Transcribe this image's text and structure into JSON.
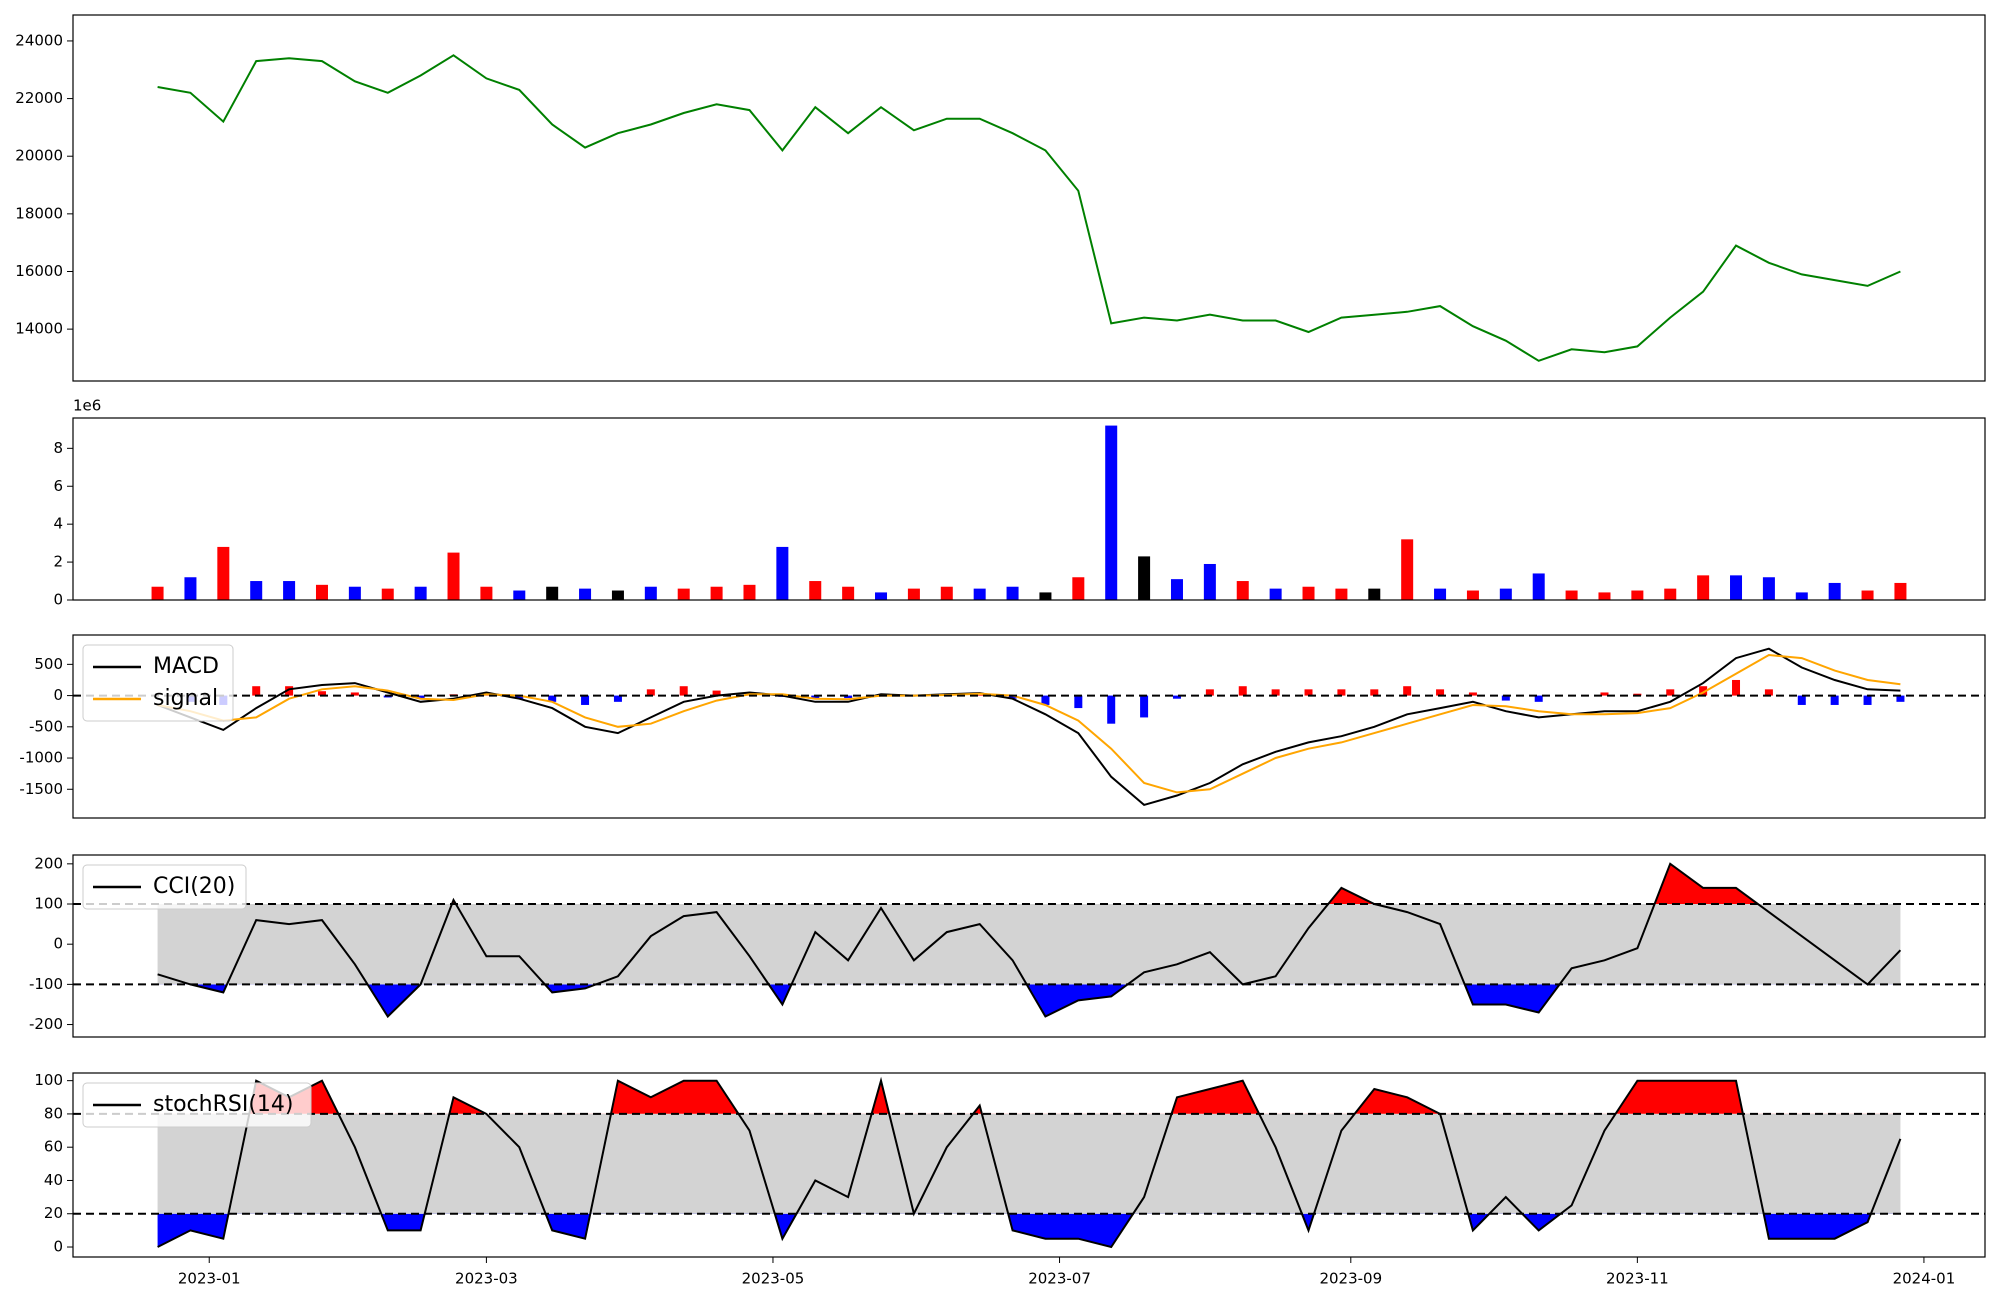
{
  "chart_data": {
    "type": "financial",
    "x": [
      19347,
      19354,
      19361,
      19368,
      19375,
      19382,
      19389,
      19396,
      19403,
      19410,
      19417,
      19424,
      19431,
      19438,
      19445,
      19452,
      19459,
      19466,
      19473,
      19480,
      19487,
      19494,
      19501,
      19508,
      19515,
      19522,
      19529,
      19536,
      19543,
      19550,
      19557,
      19564,
      19571,
      19578,
      19585,
      19592,
      19599,
      19606,
      19613,
      19620,
      19627,
      19634,
      19641,
      19648,
      19655,
      19662,
      19669,
      19676,
      19683,
      19690,
      19697,
      19704,
      19711,
      19718
    ],
    "xlim": [
      19329,
      19736
    ],
    "xticks": [
      {
        "value": 19358,
        "label": "2023-01"
      },
      {
        "value": 19417,
        "label": "2023-03"
      },
      {
        "value": 19478,
        "label": "2023-05"
      },
      {
        "value": 19539,
        "label": "2023-07"
      },
      {
        "value": 19601,
        "label": "2023-09"
      },
      {
        "value": 19662,
        "label": "2023-11"
      },
      {
        "value": 19723,
        "label": "2024-01"
      }
    ],
    "panels": [
      {
        "type": "line",
        "ylim": [
          12200,
          24900
        ],
        "yticks": [
          14000,
          16000,
          18000,
          20000,
          22000,
          24000
        ],
        "series": [
          {
            "color": "green",
            "values": [
              22400,
              22200,
              21200,
              23300,
              23400,
              23300,
              22600,
              22200,
              22800,
              23500,
              22700,
              22300,
              21100,
              20300,
              20800,
              21100,
              21500,
              21800,
              21600,
              20200,
              21700,
              20800,
              21700,
              20900,
              21300,
              21300,
              20800,
              20200,
              18800,
              14200,
              14400,
              14300,
              14500,
              14300,
              14300,
              13900,
              14400,
              14500,
              14600,
              14800,
              14100,
              13600,
              12900,
              13300,
              13200,
              13400,
              14400,
              15300,
              16900,
              16300,
              15900,
              15700,
              15500,
              16000
            ]
          }
        ]
      },
      {
        "type": "bar",
        "offset_label": "1e6",
        "ylim": [
          0,
          9.6
        ],
        "yticks": [
          0,
          2,
          4,
          6,
          8
        ],
        "values": [
          0.7,
          1.2,
          2.8,
          1.0,
          1.0,
          0.8,
          0.7,
          0.6,
          0.7,
          2.5,
          0.7,
          0.5,
          0.7,
          0.6,
          0.5,
          0.7,
          0.6,
          0.7,
          0.8,
          2.8,
          1.0,
          0.7,
          0.4,
          0.6,
          0.7,
          0.6,
          0.7,
          0.4,
          1.2,
          9.2,
          2.3,
          1.1,
          1.9,
          1.0,
          0.6,
          0.7,
          0.6,
          0.6,
          3.2,
          0.6,
          0.5,
          0.6,
          1.4,
          0.5,
          0.4,
          0.5,
          0.6,
          1.3,
          1.3,
          1.2,
          0.4,
          0.9,
          0.5,
          0.9
        ],
        "colors": [
          "red",
          "blue",
          "red",
          "blue",
          "blue",
          "red",
          "blue",
          "red",
          "blue",
          "red",
          "red",
          "blue",
          "black",
          "blue",
          "black",
          "blue",
          "red",
          "red",
          "red",
          "blue",
          "red",
          "red",
          "blue",
          "red",
          "red",
          "blue",
          "blue",
          "black",
          "red",
          "blue",
          "black",
          "blue",
          "blue",
          "red",
          "blue",
          "red",
          "red",
          "black",
          "red",
          "blue",
          "red",
          "blue",
          "blue",
          "red",
          "red",
          "red",
          "red",
          "red",
          "blue",
          "blue",
          "blue",
          "blue",
          "red",
          "red"
        ]
      },
      {
        "type": "macd",
        "ylim": [
          -1960,
          970
        ],
        "yticks": [
          -1500,
          -1000,
          -500,
          0,
          500
        ],
        "hlines": [
          0
        ],
        "legend": "upper left",
        "series": [
          {
            "name": "MACD",
            "color": "black",
            "values": [
              -150,
              -350,
              -550,
              -200,
              100,
              170,
              200,
              50,
              -100,
              -50,
              50,
              -50,
              -200,
              -500,
              -600,
              -350,
              -100,
              0,
              50,
              0,
              -100,
              -100,
              20,
              0,
              20,
              40,
              -50,
              -300,
              -600,
              -1300,
              -1750,
              -1600,
              -1400,
              -1100,
              -900,
              -750,
              -650,
              -500,
              -300,
              -200,
              -100,
              -250,
              -350,
              -300,
              -250,
              -250,
              -100,
              200,
              600,
              750,
              450,
              250,
              100,
              80
            ]
          },
          {
            "name": "signal",
            "color": "orange",
            "values": [
              -150,
              -250,
              -400,
              -350,
              -50,
              100,
              150,
              80,
              -50,
              -70,
              20,
              0,
              -100,
              -350,
              -500,
              -450,
              -250,
              -80,
              20,
              20,
              -50,
              -60,
              0,
              0,
              10,
              30,
              0,
              -150,
              -400,
              -850,
              -1400,
              -1550,
              -1500,
              -1250,
              -1000,
              -850,
              -750,
              -600,
              -450,
              -300,
              -150,
              -170,
              -250,
              -300,
              -300,
              -280,
              -200,
              50,
              350,
              650,
              600,
              400,
              250,
              180
            ]
          }
        ],
        "histogram": {
          "positive_color": "red",
          "negative_color": "blue",
          "values": [
            0,
            -100,
            -150,
            150,
            150,
            70,
            50,
            -30,
            -50,
            20,
            30,
            -50,
            -100,
            -150,
            -100,
            100,
            150,
            80,
            30,
            -20,
            -50,
            -40,
            20,
            0,
            10,
            10,
            -50,
            -150,
            -200,
            -450,
            -350,
            -50,
            100,
            150,
            100,
            100,
            100,
            100,
            150,
            100,
            50,
            -80,
            -100,
            0,
            50,
            30,
            100,
            150,
            250,
            100,
            -150,
            -150,
            -150,
            -100
          ]
        }
      },
      {
        "type": "oscillator",
        "ylim": [
          -231,
          222
        ],
        "yticks": [
          -200,
          -100,
          0,
          100,
          200
        ],
        "hlines": [
          -100,
          100
        ],
        "band_color": "lightgray",
        "upper_fill": "red",
        "lower_fill": "blue",
        "legend": "upper left",
        "series": [
          {
            "name": "CCI(20)",
            "color": "black",
            "values": [
              -75,
              -100,
              -120,
              60,
              50,
              60,
              -50,
              -180,
              -100,
              110,
              -30,
              -30,
              -120,
              -110,
              -80,
              20,
              70,
              80,
              -30,
              -150,
              30,
              -40,
              90,
              -40,
              30,
              50,
              -40,
              -180,
              -140,
              -130,
              -70,
              -50,
              -20,
              -100,
              -80,
              40,
              140,
              100,
              80,
              50,
              -150,
              -150,
              -170,
              -60,
              -40,
              -10,
              200,
              140,
              140,
              80,
              20,
              -40,
              -100,
              -15
            ]
          }
        ]
      },
      {
        "type": "oscillator",
        "ylim": [
          -6,
          104.6
        ],
        "yticks": [
          0,
          20,
          40,
          60,
          80,
          100
        ],
        "hlines": [
          20,
          80
        ],
        "band_color": "lightgray",
        "upper_fill": "red",
        "lower_fill": "blue",
        "legend": "upper left",
        "series": [
          {
            "name": "stochRSI(14)",
            "color": "black",
            "values": [
              0,
              10,
              5,
              100,
              90,
              100,
              60,
              10,
              10,
              90,
              80,
              60,
              10,
              5,
              100,
              90,
              100,
              100,
              70,
              5,
              40,
              30,
              100,
              20,
              60,
              85,
              10,
              5,
              5,
              0,
              30,
              90,
              95,
              100,
              60,
              10,
              70,
              95,
              90,
              80,
              10,
              30,
              10,
              25,
              70,
              100,
              100,
              100,
              100,
              5,
              5,
              5,
              15,
              65
            ]
          }
        ]
      }
    ]
  }
}
